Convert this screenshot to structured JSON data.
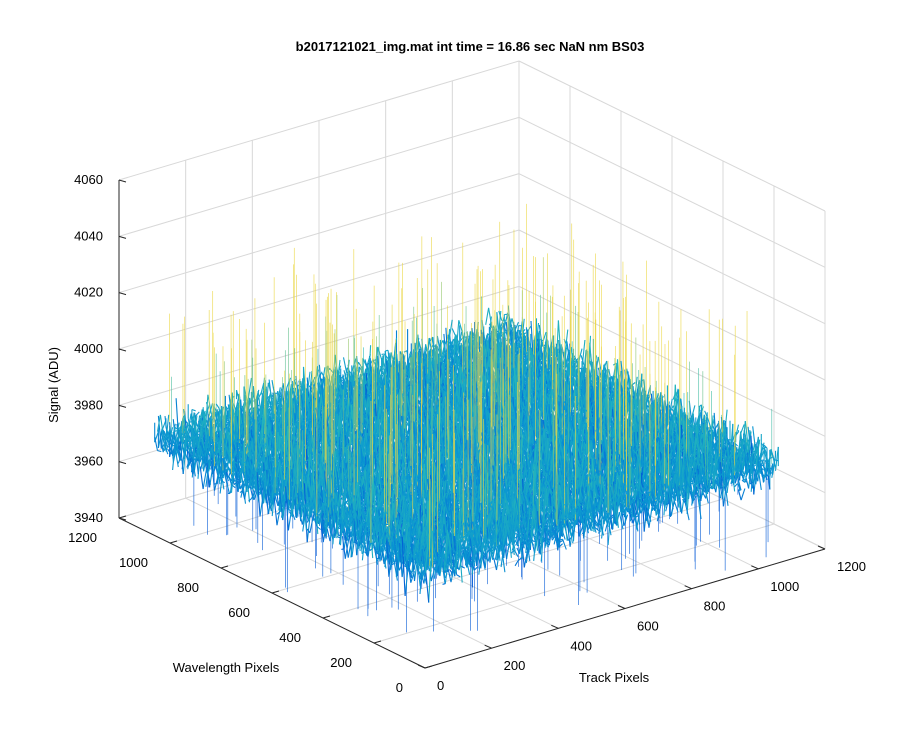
{
  "chart_data": {
    "type": "surface",
    "title": "b2017121021_img.mat int time = 16.86 sec  NaN nm BS03",
    "xlabel": "Track Pixels",
    "ylabel": "Wavelength Pixels",
    "zlabel": "Signal (ADU)",
    "xlim": [
      0,
      1200
    ],
    "ylim": [
      0,
      1200
    ],
    "zlim": [
      3940,
      4060
    ],
    "x_ticks": [
      "0",
      "200",
      "400",
      "600",
      "800",
      "1000",
      "1200"
    ],
    "y_ticks": [
      "0",
      "200",
      "400",
      "600",
      "800",
      "1000",
      "1200"
    ],
    "z_ticks": [
      "3940",
      "3960",
      "3980",
      "4000",
      "4020",
      "4040",
      "4060"
    ],
    "x_extent": [
      0,
      1060
    ],
    "y_extent": [
      0,
      1060
    ],
    "signal_mean": 3975,
    "signal_range_typical": [
      3960,
      3990
    ],
    "signal_range_spikes": [
      3940,
      4030
    ],
    "colormap": "parula",
    "grid": true
  }
}
